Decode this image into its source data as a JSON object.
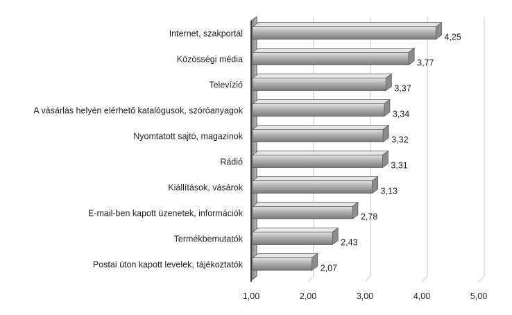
{
  "chart_data": {
    "type": "bar",
    "orientation": "horizontal",
    "categories": [
      "Internet, szakportál",
      "Közösségi média",
      "Televízió",
      "A vásárlás helyén elérhető katalógusok, szóróanyagok",
      "Nyomtatott sajtó, magazinok",
      "Rádió",
      "Kiállítások, vásárok",
      "E-mail-ben kapott üzenetek, információk",
      "Termékbemutatók",
      "Postai úton kapott levelek, tájékoztatók"
    ],
    "values": [
      4.25,
      3.77,
      3.37,
      3.34,
      3.32,
      3.31,
      3.13,
      2.78,
      2.43,
      2.07
    ],
    "value_labels": [
      "4,25",
      "3,77",
      "3,37",
      "3,34",
      "3,32",
      "3,31",
      "3,13",
      "2,78",
      "2,43",
      "2,07"
    ],
    "xlim": [
      1,
      5
    ],
    "x_ticks": [
      1,
      2,
      3,
      4,
      5
    ],
    "x_tick_labels": [
      "1,00",
      "2,00",
      "3,00",
      "4,00",
      "5,00"
    ],
    "title": "",
    "xlabel": "",
    "ylabel": "",
    "grid": "vertical",
    "legend": "none",
    "colors": {
      "bar_top": "#d9d9d9",
      "bar_mid": "#a6a6a6",
      "bar_bottom": "#7f7f7f",
      "bar_edge": "#5f5f5f",
      "grid": "#d9d9d9",
      "axis": "#404040"
    }
  }
}
